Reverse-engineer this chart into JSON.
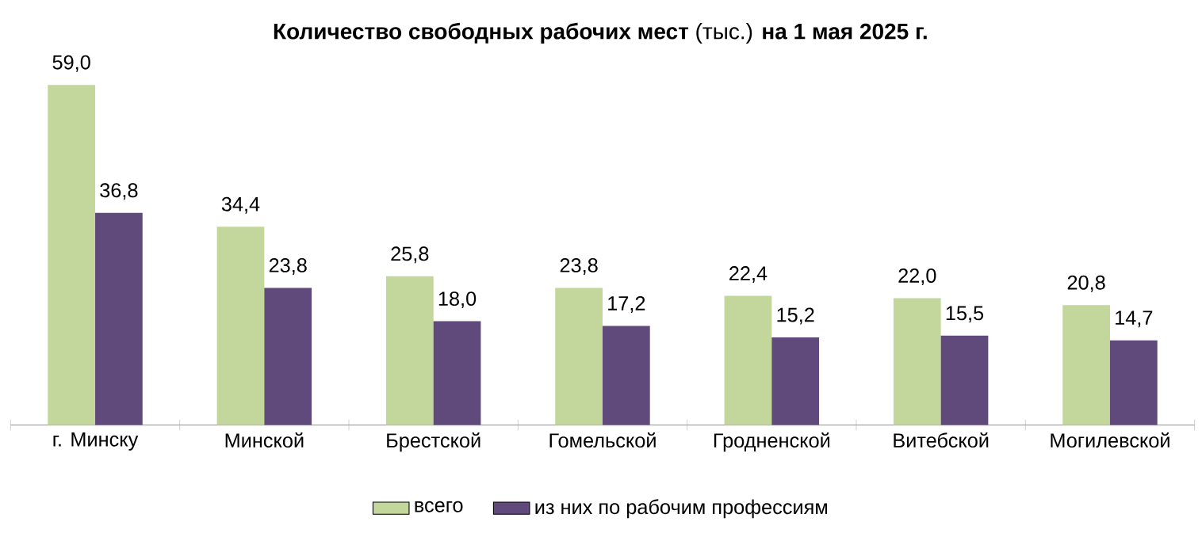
{
  "chart_data": {
    "type": "bar",
    "title": "**Количество свободных рабочих мест** (тыс.) **на 1 мая 2025 г.**",
    "categories": [
      "г. Минску",
      "Минской",
      "Брестской",
      "Гомельской",
      "Гродненской",
      "Витебской",
      "Могилевской"
    ],
    "series": [
      {
        "name": "всего",
        "color": "#c3d69b",
        "values": [
          59.0,
          34.4,
          25.8,
          23.8,
          22.4,
          22.0,
          20.8
        ],
        "value_labels": [
          "59,0",
          "34,4",
          "25,8",
          "23,8",
          "22,4",
          "22,0",
          "20,8"
        ]
      },
      {
        "name": "из них по рабочим профессиям",
        "color": "#604a7b",
        "values": [
          36.8,
          23.8,
          18.0,
          17.2,
          15.2,
          15.5,
          14.7
        ],
        "value_labels": [
          "36,8",
          "23,8",
          "18,0",
          "17,2",
          "15,2",
          "15,5",
          "14,7"
        ]
      }
    ],
    "legend": "bottom"
  }
}
